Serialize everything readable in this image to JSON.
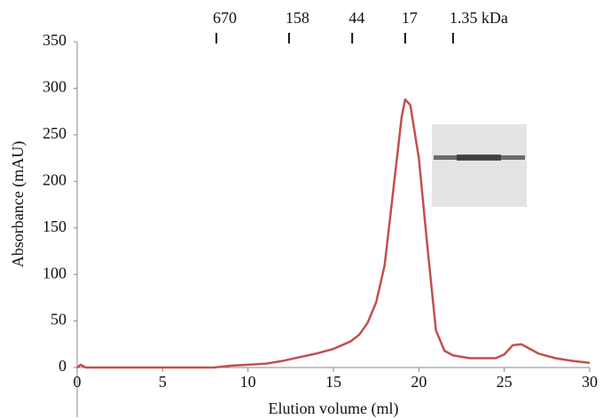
{
  "chart_data": {
    "type": "line",
    "x_label": "Elution volume (ml)",
    "y_label": "Absorbance (mAU)",
    "xlim": [
      0,
      30
    ],
    "xticks": [
      0,
      5,
      10,
      15,
      20,
      25,
      30
    ],
    "ylim": [
      0,
      350
    ],
    "yticks": [
      0,
      50,
      100,
      150,
      200,
      250,
      300,
      350
    ],
    "grid": false,
    "x": [
      0,
      0.2,
      0.5,
      5,
      8,
      9,
      10,
      11,
      12,
      13,
      14,
      15,
      16,
      16.5,
      17,
      17.5,
      18,
      18.5,
      19,
      19.2,
      19.5,
      20,
      20.5,
      21,
      21.5,
      22,
      23,
      24,
      24.5,
      25,
      25.5,
      26,
      26.5,
      27,
      28,
      29,
      30
    ],
    "series": [
      {
        "color": "#c0504d",
        "values": [
          0,
          3,
          0,
          0,
          0,
          2,
          3,
          4,
          7,
          11,
          15,
          20,
          28,
          35,
          48,
          70,
          110,
          190,
          270,
          288,
          282,
          225,
          130,
          40,
          18,
          13,
          10,
          10,
          10,
          14,
          24,
          25,
          20,
          15,
          10,
          7,
          5
        ]
      }
    ],
    "markers": [
      {
        "label": "670",
        "x": 8.15
      },
      {
        "label": "158",
        "x": 12.4
      },
      {
        "label": "44",
        "x": 16.1
      },
      {
        "label": "17",
        "x": 19.2
      },
      {
        "label": "1.35 kDa",
        "x": 22.0
      }
    ]
  }
}
